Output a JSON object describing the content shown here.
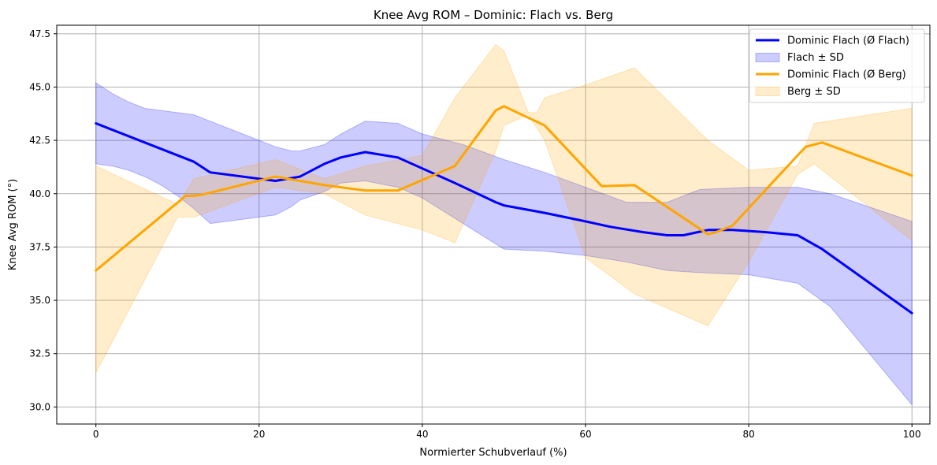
{
  "chart_data": {
    "type": "line",
    "title": "Knee Avg ROM – Dominic: Flach vs. Berg",
    "xlabel": "Normierter Schubverlauf (%)",
    "ylabel": "Knee Avg ROM (°)",
    "xlim": [
      -4.8,
      102.2
    ],
    "ylim": [
      29.2,
      47.9
    ],
    "xticks": [
      0,
      20,
      40,
      60,
      80,
      100
    ],
    "yticks": [
      30.0,
      32.5,
      35.0,
      37.5,
      40.0,
      42.5,
      45.0,
      47.5
    ],
    "xtick_labels": [
      "0",
      "20",
      "40",
      "60",
      "80",
      "100"
    ],
    "ytick_labels": [
      "30.0",
      "32.5",
      "35.0",
      "37.5",
      "40.0",
      "42.5",
      "45.0",
      "47.5"
    ],
    "grid": true,
    "legend_position": "top-right",
    "series": [
      {
        "name": "Dominic Flach (Ø Flach)",
        "kind": "line",
        "color": "#0000ff",
        "x": [
          0,
          12,
          14,
          22,
          25,
          28,
          30,
          33,
          37,
          44,
          49,
          50,
          55,
          60,
          63,
          67,
          70,
          72,
          75,
          78,
          82,
          86,
          89,
          100
        ],
        "y": [
          43.3,
          41.5,
          41.0,
          40.6,
          40.8,
          41.4,
          41.7,
          41.95,
          41.7,
          40.5,
          39.6,
          39.45,
          39.1,
          38.7,
          38.45,
          38.2,
          38.05,
          38.05,
          38.3,
          38.3,
          38.2,
          38.05,
          37.4,
          34.4
        ]
      },
      {
        "name": "Flach ± SD",
        "kind": "band",
        "color": "#0000ff",
        "x": [
          0,
          2,
          4,
          6,
          8,
          10,
          12,
          14,
          18,
          22,
          24,
          25,
          28,
          30,
          33,
          37,
          40,
          45,
          50,
          55,
          60,
          65,
          70,
          74,
          80,
          86,
          90,
          100
        ],
        "upper": [
          45.2,
          44.7,
          44.3,
          44.0,
          43.9,
          43.8,
          43.7,
          43.4,
          42.8,
          42.2,
          42.0,
          42.0,
          42.3,
          42.8,
          43.4,
          43.3,
          42.8,
          42.3,
          41.6,
          41.0,
          40.3,
          39.6,
          39.6,
          40.2,
          40.3,
          40.3,
          40.0,
          38.7
        ],
        "lower": [
          41.4,
          41.3,
          41.1,
          40.8,
          40.4,
          39.9,
          39.3,
          38.6,
          38.8,
          39.0,
          39.4,
          39.7,
          40.1,
          40.5,
          40.6,
          40.3,
          39.8,
          38.6,
          37.4,
          37.3,
          37.1,
          36.8,
          36.4,
          36.3,
          36.2,
          35.8,
          34.7,
          30.1
        ]
      },
      {
        "name": "Dominic Flach (Ø Berg)",
        "kind": "line",
        "color": "#ffa500",
        "x": [
          0,
          11,
          12,
          13,
          22,
          28,
          33,
          37,
          44,
          49,
          50,
          55,
          62,
          66,
          75,
          76,
          78,
          86,
          87,
          89,
          100
        ],
        "y": [
          36.4,
          39.9,
          39.9,
          39.95,
          40.8,
          40.4,
          40.15,
          40.15,
          41.3,
          43.9,
          44.1,
          43.2,
          40.35,
          40.4,
          38.1,
          38.2,
          38.5,
          41.8,
          42.2,
          42.4,
          40.85
        ]
      },
      {
        "name": "Berg ± SD",
        "kind": "band",
        "color": "#ffa500",
        "x": [
          0,
          10,
          12,
          22,
          28,
          33,
          40,
          44,
          49,
          50,
          53,
          54,
          55,
          60,
          66,
          75,
          80,
          86,
          88,
          100
        ],
        "upper": [
          41.3,
          39.5,
          40.7,
          41.6,
          40.7,
          41.3,
          41.8,
          44.5,
          47.0,
          46.7,
          43.8,
          43.8,
          44.5,
          45.1,
          45.9,
          42.5,
          41.1,
          41.3,
          43.3,
          44.0
        ],
        "lower": [
          31.6,
          38.9,
          38.9,
          40.3,
          40.0,
          39.0,
          38.3,
          37.7,
          42.0,
          43.2,
          43.7,
          43.1,
          42.5,
          37.0,
          35.3,
          33.8,
          36.8,
          40.9,
          41.4,
          37.8
        ]
      }
    ]
  }
}
